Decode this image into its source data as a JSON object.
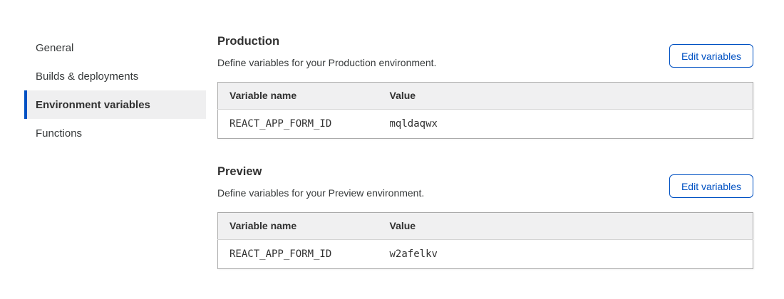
{
  "colors": {
    "accent_blue": "#0051c3",
    "heading_text": "#313131",
    "body_text": "#36393a",
    "sidebar_active_bg": "#efeff0",
    "table_border": "#ababab",
    "table_header_bg": "#f0f0f1"
  },
  "sidebar": {
    "items": [
      {
        "label": "General",
        "active": false
      },
      {
        "label": "Builds & deployments",
        "active": false
      },
      {
        "label": "Environment variables",
        "active": true
      },
      {
        "label": "Functions",
        "active": false
      }
    ]
  },
  "sections": [
    {
      "title": "Production",
      "description": "Define variables for your Production environment.",
      "edit_button_label": "Edit variables",
      "table": {
        "columns": [
          "Variable name",
          "Value"
        ],
        "rows": [
          {
            "name": "REACT_APP_FORM_ID",
            "value": "mqldaqwx"
          }
        ]
      }
    },
    {
      "title": "Preview",
      "description": "Define variables for your Preview environment.",
      "edit_button_label": "Edit variables",
      "table": {
        "columns": [
          "Variable name",
          "Value"
        ],
        "rows": [
          {
            "name": "REACT_APP_FORM_ID",
            "value": "w2afelkv"
          }
        ]
      }
    }
  ]
}
